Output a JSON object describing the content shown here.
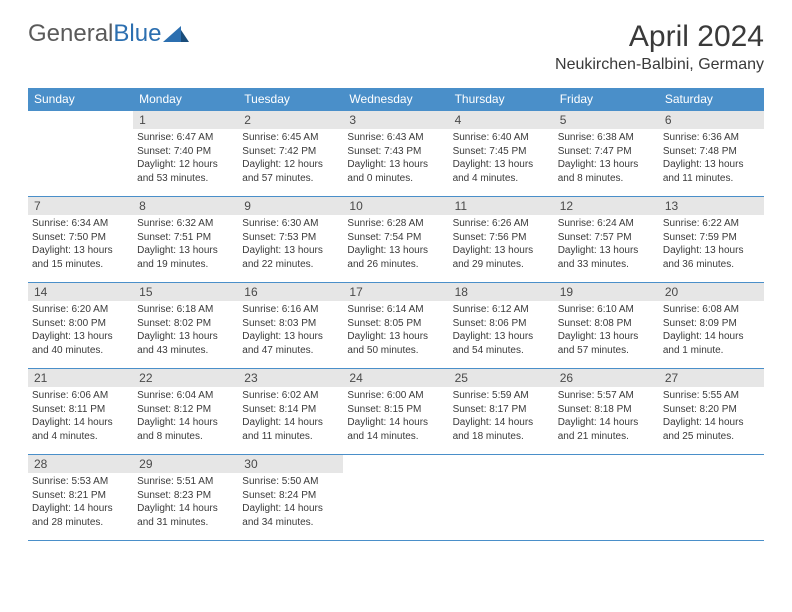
{
  "logo": {
    "word1": "General",
    "word2": "Blue"
  },
  "title": "April 2024",
  "location": "Neukirchen-Balbini, Germany",
  "colors": {
    "header_bar": "#4a8fc9",
    "daynum_bg": "#e6e6e6",
    "text": "#3a3a3a",
    "logo_gray": "#5a5a5a",
    "logo_blue": "#2c6fb0"
  },
  "days_of_week": [
    "Sunday",
    "Monday",
    "Tuesday",
    "Wednesday",
    "Thursday",
    "Friday",
    "Saturday"
  ],
  "weeks": [
    [
      {
        "n": "",
        "sunrise": "",
        "sunset": "",
        "daylight": ""
      },
      {
        "n": "1",
        "sunrise": "Sunrise: 6:47 AM",
        "sunset": "Sunset: 7:40 PM",
        "daylight": "Daylight: 12 hours and 53 minutes."
      },
      {
        "n": "2",
        "sunrise": "Sunrise: 6:45 AM",
        "sunset": "Sunset: 7:42 PM",
        "daylight": "Daylight: 12 hours and 57 minutes."
      },
      {
        "n": "3",
        "sunrise": "Sunrise: 6:43 AM",
        "sunset": "Sunset: 7:43 PM",
        "daylight": "Daylight: 13 hours and 0 minutes."
      },
      {
        "n": "4",
        "sunrise": "Sunrise: 6:40 AM",
        "sunset": "Sunset: 7:45 PM",
        "daylight": "Daylight: 13 hours and 4 minutes."
      },
      {
        "n": "5",
        "sunrise": "Sunrise: 6:38 AM",
        "sunset": "Sunset: 7:47 PM",
        "daylight": "Daylight: 13 hours and 8 minutes."
      },
      {
        "n": "6",
        "sunrise": "Sunrise: 6:36 AM",
        "sunset": "Sunset: 7:48 PM",
        "daylight": "Daylight: 13 hours and 11 minutes."
      }
    ],
    [
      {
        "n": "7",
        "sunrise": "Sunrise: 6:34 AM",
        "sunset": "Sunset: 7:50 PM",
        "daylight": "Daylight: 13 hours and 15 minutes."
      },
      {
        "n": "8",
        "sunrise": "Sunrise: 6:32 AM",
        "sunset": "Sunset: 7:51 PM",
        "daylight": "Daylight: 13 hours and 19 minutes."
      },
      {
        "n": "9",
        "sunrise": "Sunrise: 6:30 AM",
        "sunset": "Sunset: 7:53 PM",
        "daylight": "Daylight: 13 hours and 22 minutes."
      },
      {
        "n": "10",
        "sunrise": "Sunrise: 6:28 AM",
        "sunset": "Sunset: 7:54 PM",
        "daylight": "Daylight: 13 hours and 26 minutes."
      },
      {
        "n": "11",
        "sunrise": "Sunrise: 6:26 AM",
        "sunset": "Sunset: 7:56 PM",
        "daylight": "Daylight: 13 hours and 29 minutes."
      },
      {
        "n": "12",
        "sunrise": "Sunrise: 6:24 AM",
        "sunset": "Sunset: 7:57 PM",
        "daylight": "Daylight: 13 hours and 33 minutes."
      },
      {
        "n": "13",
        "sunrise": "Sunrise: 6:22 AM",
        "sunset": "Sunset: 7:59 PM",
        "daylight": "Daylight: 13 hours and 36 minutes."
      }
    ],
    [
      {
        "n": "14",
        "sunrise": "Sunrise: 6:20 AM",
        "sunset": "Sunset: 8:00 PM",
        "daylight": "Daylight: 13 hours and 40 minutes."
      },
      {
        "n": "15",
        "sunrise": "Sunrise: 6:18 AM",
        "sunset": "Sunset: 8:02 PM",
        "daylight": "Daylight: 13 hours and 43 minutes."
      },
      {
        "n": "16",
        "sunrise": "Sunrise: 6:16 AM",
        "sunset": "Sunset: 8:03 PM",
        "daylight": "Daylight: 13 hours and 47 minutes."
      },
      {
        "n": "17",
        "sunrise": "Sunrise: 6:14 AM",
        "sunset": "Sunset: 8:05 PM",
        "daylight": "Daylight: 13 hours and 50 minutes."
      },
      {
        "n": "18",
        "sunrise": "Sunrise: 6:12 AM",
        "sunset": "Sunset: 8:06 PM",
        "daylight": "Daylight: 13 hours and 54 minutes."
      },
      {
        "n": "19",
        "sunrise": "Sunrise: 6:10 AM",
        "sunset": "Sunset: 8:08 PM",
        "daylight": "Daylight: 13 hours and 57 minutes."
      },
      {
        "n": "20",
        "sunrise": "Sunrise: 6:08 AM",
        "sunset": "Sunset: 8:09 PM",
        "daylight": "Daylight: 14 hours and 1 minute."
      }
    ],
    [
      {
        "n": "21",
        "sunrise": "Sunrise: 6:06 AM",
        "sunset": "Sunset: 8:11 PM",
        "daylight": "Daylight: 14 hours and 4 minutes."
      },
      {
        "n": "22",
        "sunrise": "Sunrise: 6:04 AM",
        "sunset": "Sunset: 8:12 PM",
        "daylight": "Daylight: 14 hours and 8 minutes."
      },
      {
        "n": "23",
        "sunrise": "Sunrise: 6:02 AM",
        "sunset": "Sunset: 8:14 PM",
        "daylight": "Daylight: 14 hours and 11 minutes."
      },
      {
        "n": "24",
        "sunrise": "Sunrise: 6:00 AM",
        "sunset": "Sunset: 8:15 PM",
        "daylight": "Daylight: 14 hours and 14 minutes."
      },
      {
        "n": "25",
        "sunrise": "Sunrise: 5:59 AM",
        "sunset": "Sunset: 8:17 PM",
        "daylight": "Daylight: 14 hours and 18 minutes."
      },
      {
        "n": "26",
        "sunrise": "Sunrise: 5:57 AM",
        "sunset": "Sunset: 8:18 PM",
        "daylight": "Daylight: 14 hours and 21 minutes."
      },
      {
        "n": "27",
        "sunrise": "Sunrise: 5:55 AM",
        "sunset": "Sunset: 8:20 PM",
        "daylight": "Daylight: 14 hours and 25 minutes."
      }
    ],
    [
      {
        "n": "28",
        "sunrise": "Sunrise: 5:53 AM",
        "sunset": "Sunset: 8:21 PM",
        "daylight": "Daylight: 14 hours and 28 minutes."
      },
      {
        "n": "29",
        "sunrise": "Sunrise: 5:51 AM",
        "sunset": "Sunset: 8:23 PM",
        "daylight": "Daylight: 14 hours and 31 minutes."
      },
      {
        "n": "30",
        "sunrise": "Sunrise: 5:50 AM",
        "sunset": "Sunset: 8:24 PM",
        "daylight": "Daylight: 14 hours and 34 minutes."
      },
      {
        "n": "",
        "sunrise": "",
        "sunset": "",
        "daylight": ""
      },
      {
        "n": "",
        "sunrise": "",
        "sunset": "",
        "daylight": ""
      },
      {
        "n": "",
        "sunrise": "",
        "sunset": "",
        "daylight": ""
      },
      {
        "n": "",
        "sunrise": "",
        "sunset": "",
        "daylight": ""
      }
    ]
  ]
}
